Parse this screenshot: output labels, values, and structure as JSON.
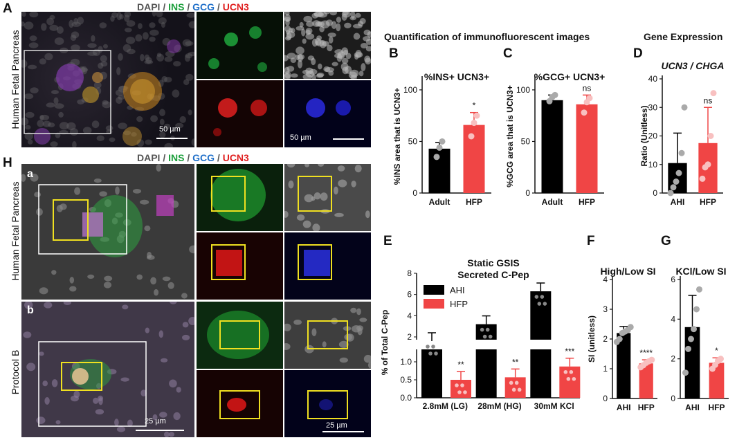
{
  "panel_letters": {
    "A": "A",
    "B": "B",
    "C": "C",
    "D": "D",
    "E": "E",
    "F": "F",
    "G": "G",
    "H": "H",
    "Ha": "a",
    "Hb": "b"
  },
  "stain_header": {
    "dapi": "DAPI",
    "ins": "INS",
    "gcg": "GCG",
    "ucn3": "UCN3",
    "sep": " / "
  },
  "labels": {
    "human_fetal_pancreas": "Human Fetal Pancreas",
    "protocol_b": "Protocol B",
    "scale_50": "50 µm",
    "scale_25": "25 µm",
    "quant_title": "Quantification of immunofluorescent images",
    "gene_expression": "Gene Expression"
  },
  "colors": {
    "ins": "#1a9e3a",
    "gcg": "#1f6fc9",
    "ucn3": "#e02020",
    "black_bar": "#000000",
    "red_bar": "#f04545"
  },
  "chart_data": [
    {
      "id": "B",
      "type": "bar",
      "title": "%INS+ UCN3+",
      "ylabel": "%INS area that is UCN3+",
      "categories": [
        "Adult",
        "HFP"
      ],
      "values": [
        43,
        66
      ],
      "errors": [
        6,
        12
      ],
      "points": [
        [
          35,
          44,
          50
        ],
        [
          55,
          68,
          75
        ]
      ],
      "ylim": [
        0,
        110
      ],
      "yticks": [
        0,
        50,
        100
      ],
      "annotations": [
        "",
        "*"
      ]
    },
    {
      "id": "C",
      "type": "bar",
      "title": "%GCG+ UCN3+",
      "ylabel": "%GCG area that is UCN3+",
      "categories": [
        "Adult",
        "HFP"
      ],
      "values": [
        90,
        86
      ],
      "errors": [
        5,
        9
      ],
      "points": [
        [
          89,
          93,
          95
        ],
        [
          78,
          88,
          92
        ]
      ],
      "ylim": [
        0,
        110
      ],
      "yticks": [
        0,
        50,
        100
      ],
      "annotations": [
        "",
        "ns"
      ]
    },
    {
      "id": "D",
      "type": "bar",
      "title": "UCN3 / CHGA",
      "ylabel": "Ratio (Unitless)",
      "categories": [
        "AHI",
        "HFP"
      ],
      "values": [
        10.5,
        17.5
      ],
      "errors": [
        10.5,
        12.5
      ],
      "points": [
        [
          0,
          2,
          4,
          7,
          14,
          30
        ],
        [
          5,
          9,
          10,
          20,
          35
        ]
      ],
      "ylim": [
        0,
        40
      ],
      "yticks": [
        0,
        10,
        20,
        30,
        40
      ],
      "annotations": [
        "",
        "ns"
      ]
    },
    {
      "id": "E",
      "type": "bar",
      "title": "Static GSIS",
      "subtitle": "Secreted C-Pep",
      "ylabel": "% of Total C-Pep",
      "categories": [
        "2.8mM (LG)",
        "28mM (HG)",
        "30mM KCl"
      ],
      "series": [
        {
          "name": "AHI",
          "values": [
            1.7,
            3.2,
            6.3
          ]
        },
        {
          "name": "HFP",
          "values": [
            0.5,
            0.57,
            0.87
          ]
        }
      ],
      "yticks_lower": [
        "0.0",
        "0.5",
        "1.0"
      ],
      "yticks_upper": [
        "2",
        "4",
        "6",
        "8"
      ],
      "annotations": [
        "**",
        "**",
        "***"
      ],
      "legend_position": "top-left"
    },
    {
      "id": "F",
      "type": "bar",
      "title": "High/Low SI",
      "ylabel": "SI (unitless)",
      "categories": [
        "AHI",
        "HFP"
      ],
      "values": [
        2.2,
        1.18
      ],
      "errors": [
        0.22,
        0.12
      ],
      "points": [
        [
          1.9,
          2.0,
          2.2,
          2.25,
          2.3,
          2.4
        ],
        [
          1.05,
          1.12,
          1.2,
          1.25,
          1.3
        ]
      ],
      "ylim": [
        0,
        4
      ],
      "yticks": [
        0,
        1,
        2,
        3,
        4
      ],
      "annotations": [
        "",
        "****"
      ]
    },
    {
      "id": "G",
      "type": "bar",
      "title": "KCl/Low SI",
      "ylabel": "",
      "categories": [
        "AHI",
        "HFP"
      ],
      "values": [
        3.6,
        1.8
      ],
      "errors": [
        1.6,
        0.25
      ],
      "points": [
        [
          1.3,
          2.5,
          3.0,
          3.5,
          4.5,
          5.5
        ],
        [
          1.5,
          1.7,
          1.9,
          2.0
        ]
      ],
      "ylim": [
        0,
        6
      ],
      "yticks": [
        0,
        2,
        4,
        6
      ],
      "annotations": [
        "",
        "*"
      ]
    }
  ]
}
